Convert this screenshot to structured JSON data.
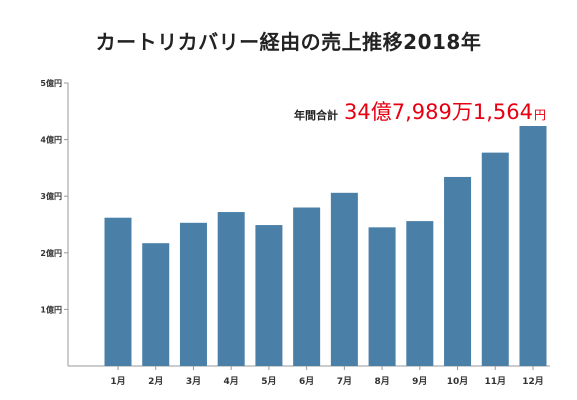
{
  "chart_data": {
    "type": "bar",
    "title": "カートリカバリー経由の売上推移2018年",
    "categories": [
      "1月",
      "2月",
      "3月",
      "4月",
      "5月",
      "6月",
      "7月",
      "8月",
      "9月",
      "10月",
      "11月",
      "12月"
    ],
    "values": [
      2.62,
      2.17,
      2.53,
      2.72,
      2.49,
      2.8,
      3.06,
      2.45,
      2.56,
      3.34,
      3.77,
      4.24
    ],
    "ylim": [
      0,
      5
    ],
    "y_ticks": [
      {
        "value": 1,
        "label": "1億円"
      },
      {
        "value": 2,
        "label": "2億円"
      },
      {
        "value": 3,
        "label": "3億円"
      },
      {
        "value": 4,
        "label": "4億円"
      },
      {
        "value": 5,
        "label": "5億円"
      }
    ],
    "grid": false,
    "legend": "none",
    "bar_color": "#4a7fa8",
    "annual_total": {
      "label": "年間合計",
      "parts": [
        {
          "text": "34",
          "size": "big"
        },
        {
          "text": "億",
          "size": "big"
        },
        {
          "text": "7,989",
          "size": "big"
        },
        {
          "text": "万",
          "size": "big"
        },
        {
          "text": "1,564",
          "size": "big"
        },
        {
          "text": "円",
          "size": "small"
        }
      ],
      "color": "#e60012"
    }
  }
}
